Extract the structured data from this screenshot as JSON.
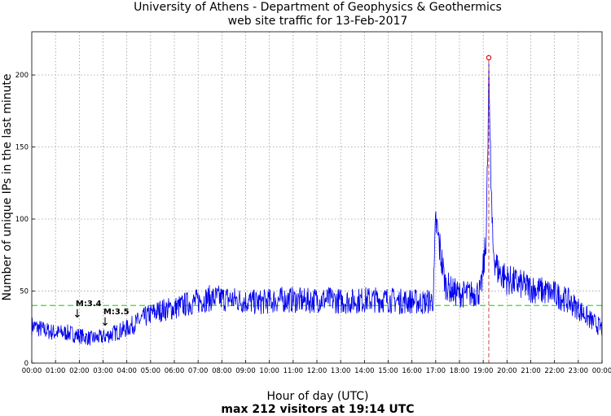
{
  "chart_data": {
    "type": "line",
    "title": "University of Athens - Department of Geophysics & Geothermics",
    "subtitle": "web site traffic for 13-Feb-2017",
    "xlabel": "Hour of day (UTC)",
    "xlabel_sub": "max 212 visitors at 19:14 UTC",
    "ylabel": "Number of unique IPs in the last minute",
    "xlim": [
      0,
      24
    ],
    "ylim": [
      0,
      230
    ],
    "x_tick_labels": [
      "00:00",
      "01:00",
      "02:00",
      "03:00",
      "04:00",
      "05:00",
      "06:00",
      "07:00",
      "08:00",
      "09:00",
      "10:00",
      "11:00",
      "12:00",
      "13:00",
      "14:00",
      "15:00",
      "16:00",
      "17:00",
      "18:00",
      "19:00",
      "20:00",
      "21:00",
      "22:00",
      "23:00",
      "00:00"
    ],
    "y_ticks": [
      0,
      50,
      100,
      150,
      200
    ],
    "grid": true,
    "reference_line": {
      "value": 40,
      "color": "#33dd33",
      "style": "dashed"
    },
    "max_point": {
      "x": "19:14",
      "y": 212,
      "color": "#dd0000"
    },
    "annotations": [
      {
        "label": "M:3.4",
        "x": "01:55"
      },
      {
        "label": "M:3.5",
        "x": "03:05"
      }
    ],
    "series": [
      {
        "color": "#0000ee",
        "x": [
          0,
          0.5,
          1,
          1.5,
          2,
          2.5,
          3,
          3.5,
          4,
          4.5,
          5,
          5.5,
          6,
          6.5,
          7,
          7.5,
          8,
          8.5,
          9,
          9.5,
          10,
          10.5,
          11,
          11.5,
          12,
          12.5,
          13,
          13.5,
          14,
          14.5,
          15,
          15.5,
          16,
          16.5,
          16.9,
          17,
          17.15,
          17.4,
          17.7,
          18,
          18.5,
          18.9,
          19.1,
          19.2,
          19.233,
          19.3,
          19.4,
          19.6,
          20,
          20.5,
          21,
          21.5,
          22,
          22.5,
          23,
          23.5,
          24
        ],
        "values": [
          26,
          23,
          21,
          21,
          19,
          17,
          18,
          21,
          24,
          29,
          34,
          37,
          38,
          41,
          43,
          45,
          45,
          44,
          43,
          42,
          43,
          44,
          44,
          43,
          44,
          44,
          43,
          43,
          44,
          44,
          44,
          43,
          43,
          42,
          44,
          98,
          82,
          55,
          50,
          48,
          48,
          50,
          80,
          150,
          212,
          140,
          80,
          65,
          58,
          55,
          52,
          50,
          48,
          44,
          38,
          30,
          24
        ]
      }
    ]
  }
}
